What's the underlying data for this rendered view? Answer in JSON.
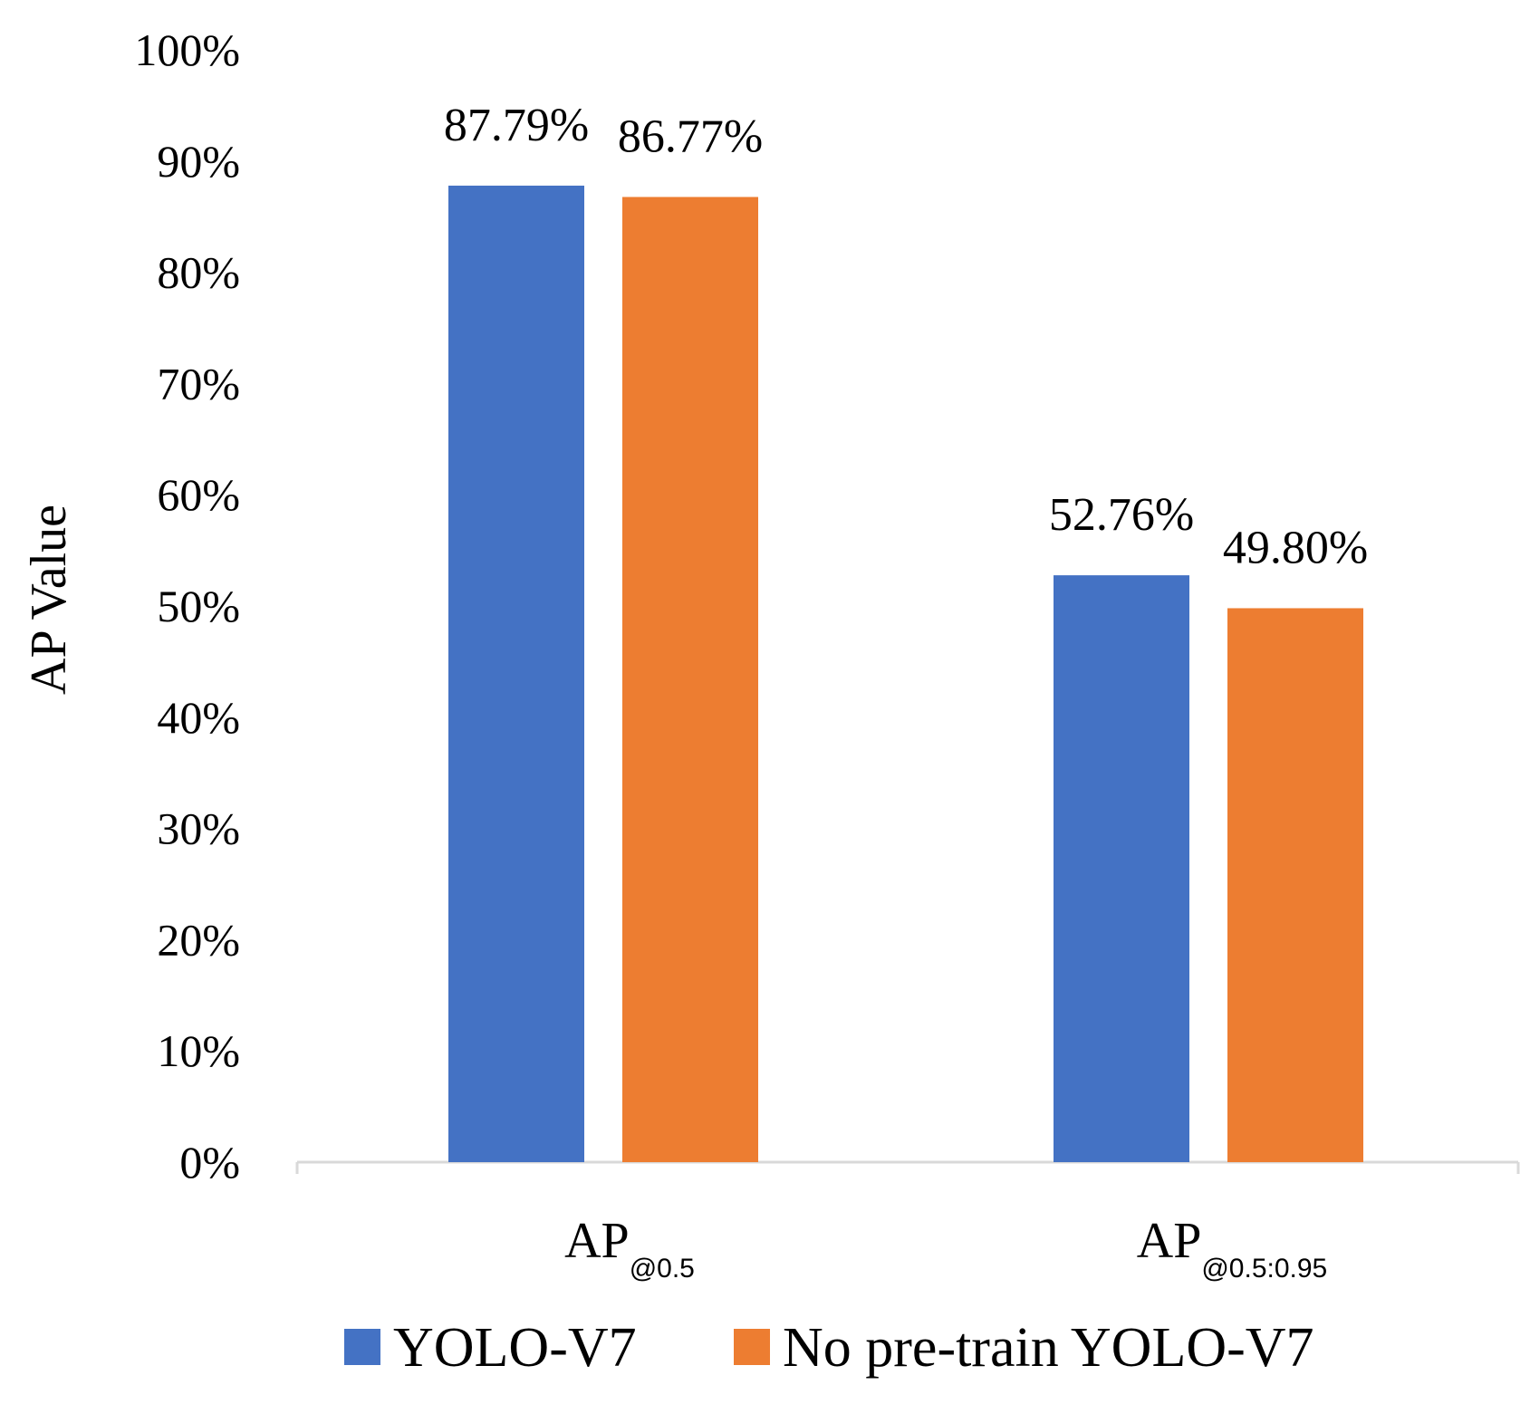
{
  "chart_data": {
    "type": "bar",
    "title": "",
    "xlabel": "",
    "ylabel": "AP Value",
    "ylim": [
      0,
      100
    ],
    "yticks": [
      "0%",
      "10%",
      "20%",
      "30%",
      "40%",
      "50%",
      "60%",
      "70%",
      "80%",
      "90%",
      "100%"
    ],
    "categories": [
      {
        "main": "AP",
        "sub": "@0.5"
      },
      {
        "main": "AP",
        "sub": "@0.5:0.95"
      }
    ],
    "series": [
      {
        "name": "YOLO-V7",
        "color": "#4472C4",
        "values": [
          87.79,
          52.76
        ],
        "labels": [
          "87.79%",
          "52.76%"
        ]
      },
      {
        "name": "No pre-train YOLO-V7",
        "color": "#ED7D31",
        "values": [
          86.77,
          49.8
        ],
        "labels": [
          "86.77%",
          "49.80%"
        ]
      }
    ],
    "legend_position": "bottom"
  }
}
